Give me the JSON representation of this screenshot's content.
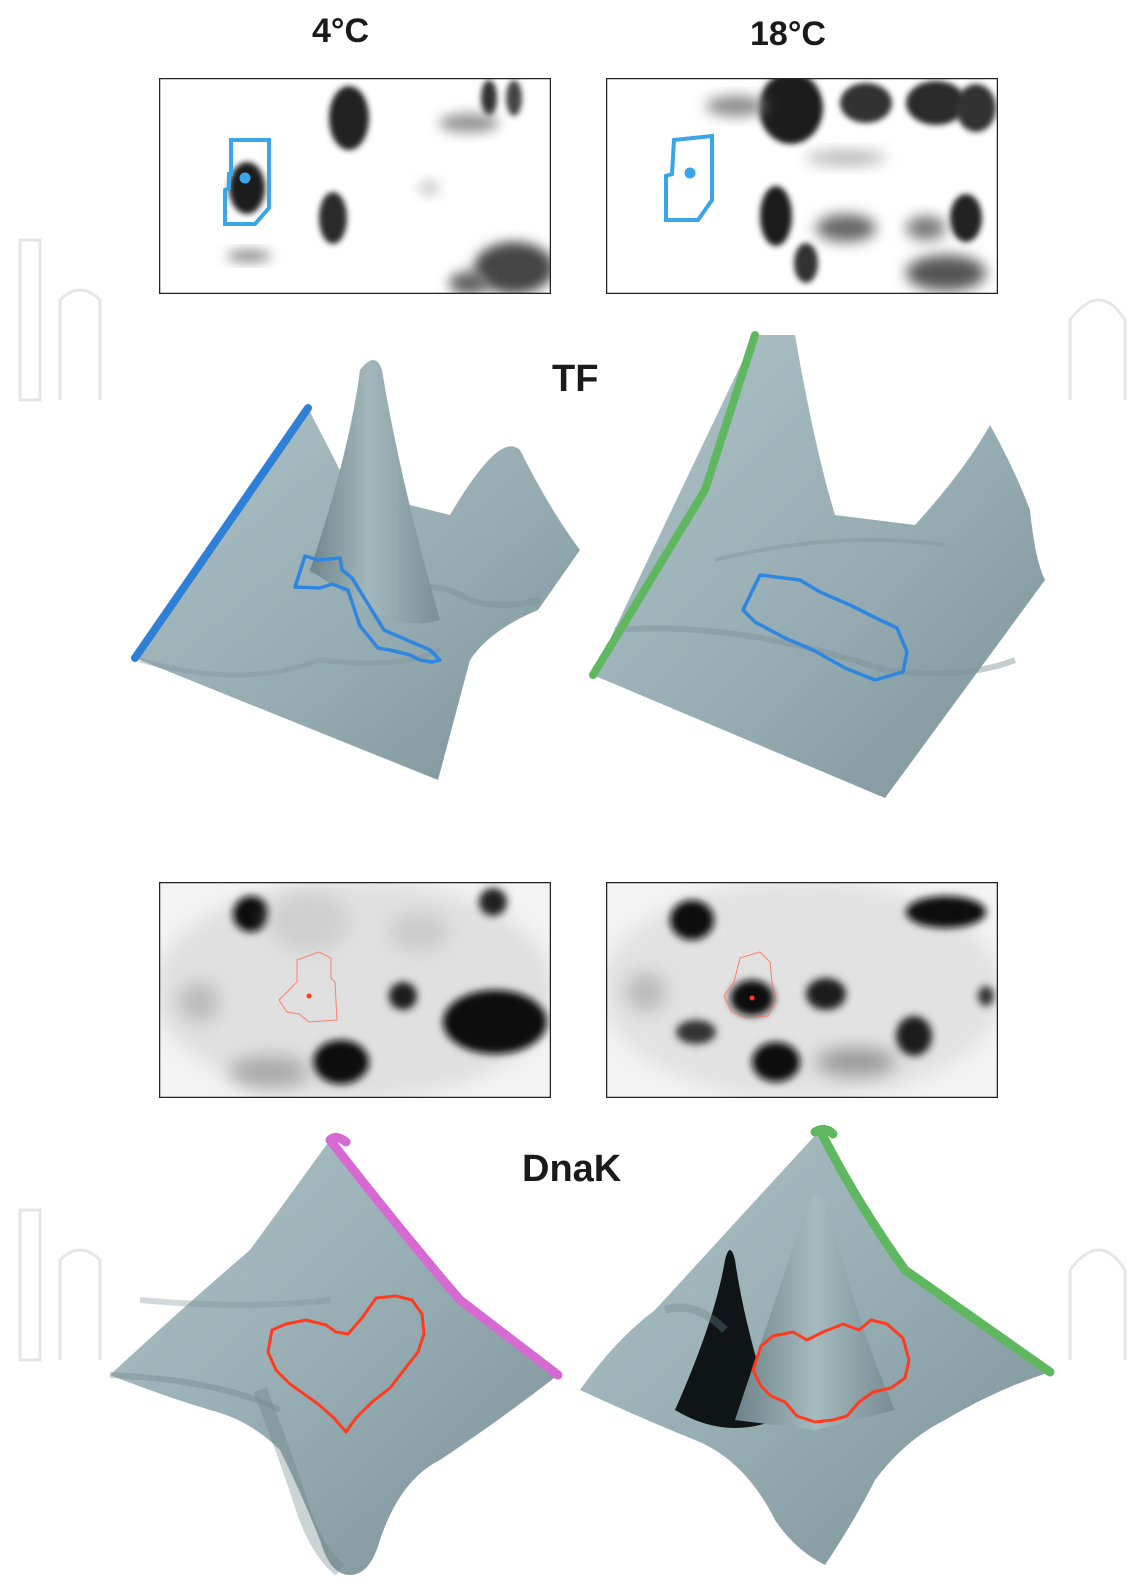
{
  "columns": {
    "left": "4°C",
    "right": "18°C"
  },
  "proteins": {
    "top": "TF",
    "bottom": "DnaK"
  },
  "colors": {
    "surface": "#93aab0",
    "surface_dark": "#6d8389",
    "spot_outline_tf": "#2f86e0",
    "spot_outline_gel_tf": "#3aa6e8",
    "spot_outline_dnak": "#ff3b1f",
    "edge_tf_4c": "#2e7fd6",
    "edge_tf_18c": "#5fb75f",
    "edge_dnak_4c": "#d66ad2",
    "edge_dnak_18c": "#5fb75f",
    "watermark": "#e4e4e4"
  }
}
